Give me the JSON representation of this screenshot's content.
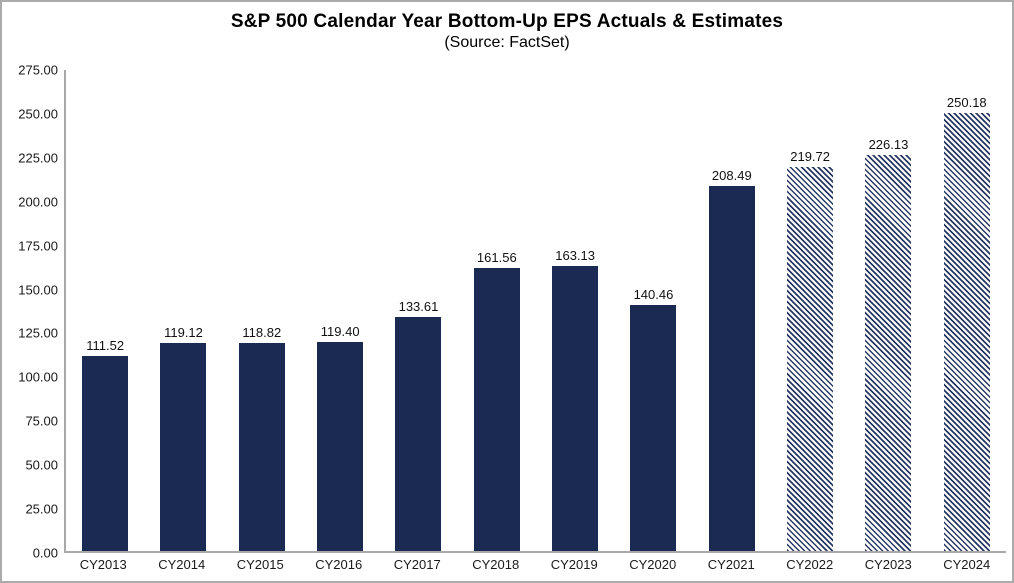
{
  "chart_data": {
    "type": "bar",
    "title": "S&P 500 Calendar Year Bottom-Up EPS Actuals & Estimates",
    "subtitle": "(Source: FactSet)",
    "xlabel": "",
    "ylabel": "",
    "ylim": [
      0,
      275
    ],
    "ytick_interval": 25,
    "yticks": [
      {
        "value": 275,
        "label": "275.00"
      },
      {
        "value": 250,
        "label": "250.00"
      },
      {
        "value": 225,
        "label": "225.00"
      },
      {
        "value": 200,
        "label": "200.00"
      },
      {
        "value": 175,
        "label": "175.00"
      },
      {
        "value": 150,
        "label": "150.00"
      },
      {
        "value": 125,
        "label": "125.00"
      },
      {
        "value": 100,
        "label": "100.00"
      },
      {
        "value": 75,
        "label": "75.00"
      },
      {
        "value": 50,
        "label": "50.00"
      },
      {
        "value": 25,
        "label": "25.00"
      },
      {
        "value": 0,
        "label": "0.00"
      }
    ],
    "grid": false,
    "legend_position": "none",
    "categories": [
      "CY2013",
      "CY2014",
      "CY2015",
      "CY2016",
      "CY2017",
      "CY2018",
      "CY2019",
      "CY2020",
      "CY2021",
      "CY2022",
      "CY2023",
      "CY2024"
    ],
    "values": [
      111.52,
      119.12,
      118.82,
      119.4,
      133.61,
      161.56,
      163.13,
      140.46,
      208.49,
      219.72,
      226.13,
      250.18
    ],
    "value_labels": [
      "111.52",
      "119.12",
      "118.82",
      "119.40",
      "133.61",
      "161.56",
      "163.13",
      "140.46",
      "208.49",
      "219.72",
      "226.13",
      "250.18"
    ],
    "estimate_flags": [
      false,
      false,
      false,
      false,
      false,
      false,
      false,
      false,
      false,
      true,
      true,
      true
    ],
    "bar_styles": {
      "actual": "solid-fill",
      "estimate": "diagonal-hatch"
    },
    "colors": {
      "bar_fill": "#1b2a53",
      "hatch_line": "#293962",
      "axis_line": "#a9a9a9",
      "text": "#000000",
      "frame_border": "#ababab",
      "background": "#ffffff"
    }
  }
}
